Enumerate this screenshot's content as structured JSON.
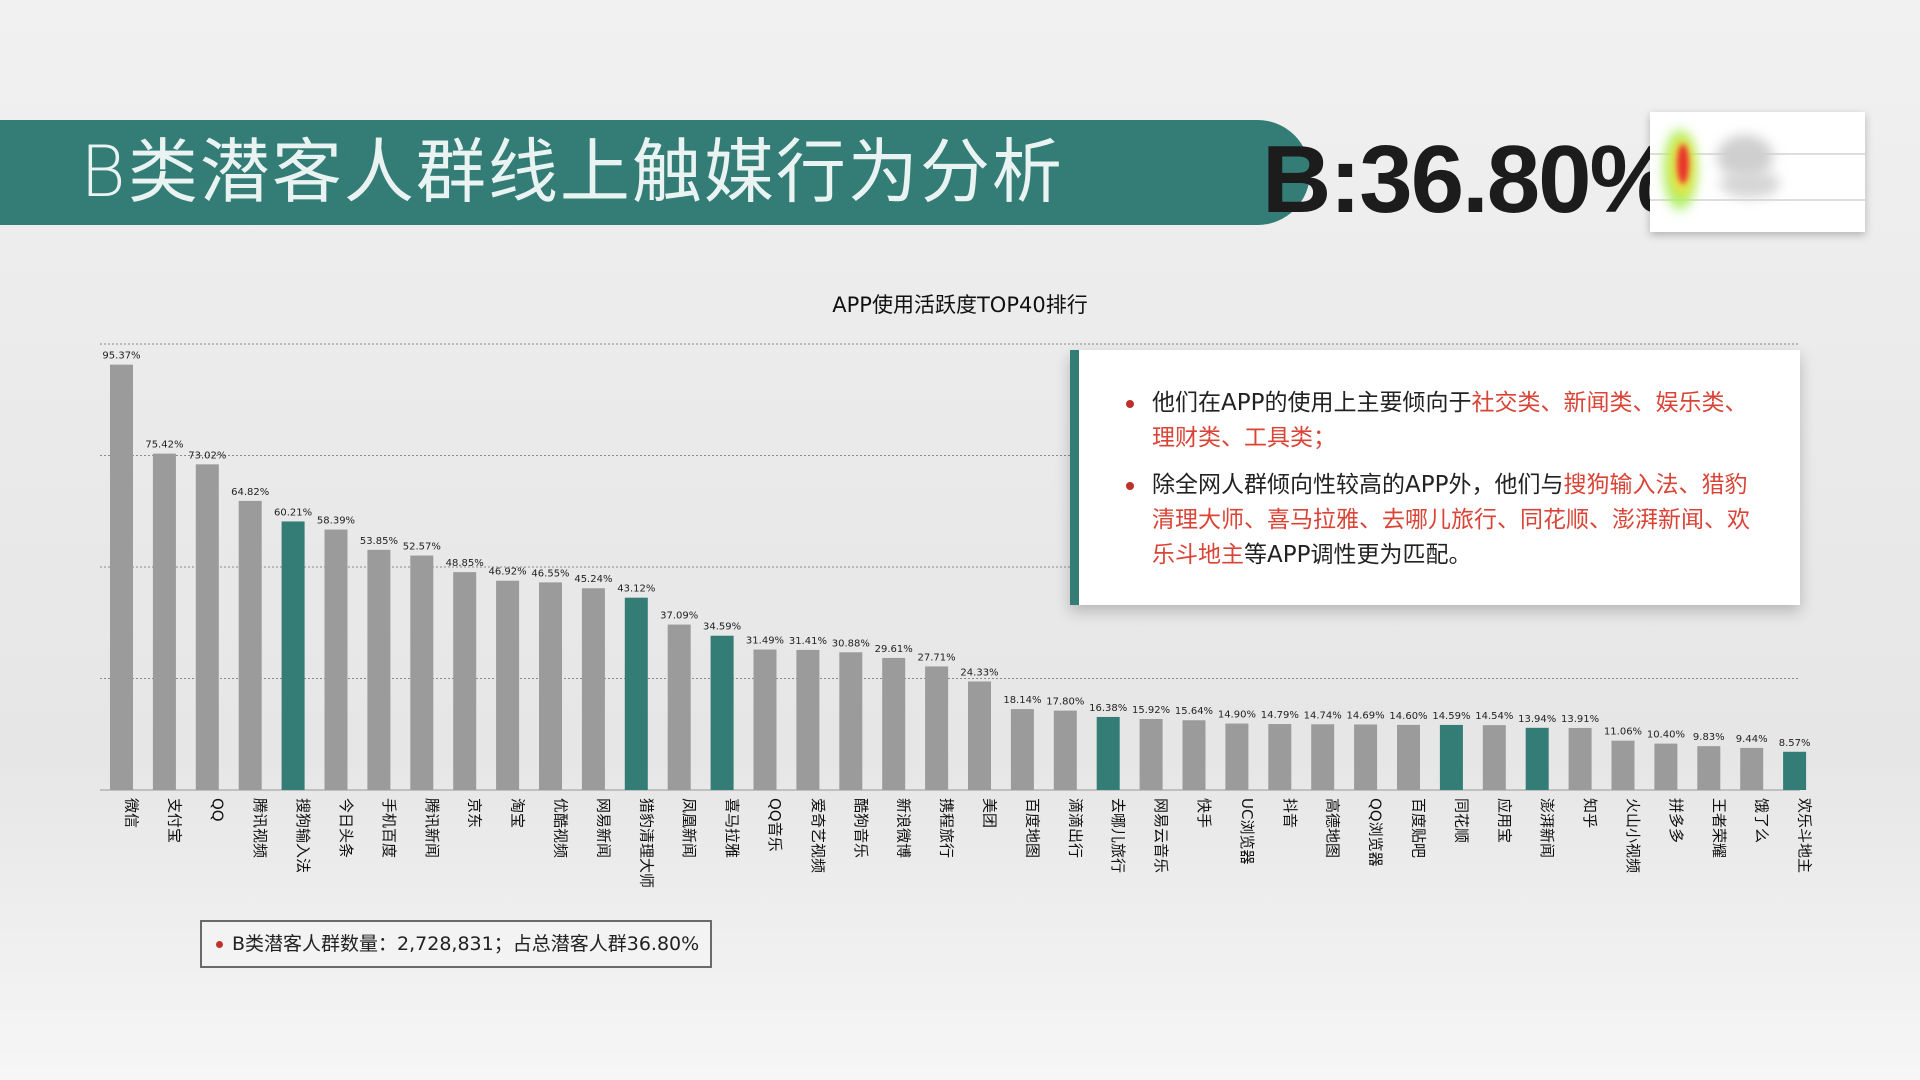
{
  "header": {
    "title": "B类潜客人群线上触媒行为分析",
    "big_percent": "B:36.80%"
  },
  "colors": {
    "accent": "#347c76",
    "bar_default": "#9b9b9b",
    "highlight_text": "#d94436"
  },
  "heatmap_icon": "heatmap-thumbnail",
  "info": {
    "bullet1_plain": "他们在APP的使用上主要倾向于",
    "bullet1_red": "社交类、新闻类、娱乐类、理财类、工具类；",
    "bullet2_plain1": "除全网人群倾向性较高的APP外，他们与",
    "bullet2_red": "搜狗输入法、猎豹清理大师、喜马拉雅、去哪儿旅行、同花顺、澎湃新闻、欢乐斗地主",
    "bullet2_plain2": "等APP调性更为匹配。"
  },
  "legend_note": "B类潜客人群数量：2,728,831；占总潜客人群36.80%",
  "chart_data": {
    "type": "bar",
    "title": "APP使用活跃度TOP40排行",
    "xlabel": "",
    "ylabel": "",
    "ylim": [
      0,
      100
    ],
    "grid": true,
    "categories": [
      "微信",
      "支付宝",
      "QQ",
      "腾讯视频",
      "搜狗输入法",
      "今日头条",
      "手机百度",
      "腾讯新闻",
      "京东",
      "淘宝",
      "优酷视频",
      "网易新闻",
      "猎豹清理大师",
      "凤凰新闻",
      "喜马拉雅",
      "QQ音乐",
      "爱奇艺视频",
      "酷狗音乐",
      "新浪微博",
      "携程旅行",
      "美团",
      "百度地图",
      "滴滴出行",
      "去哪儿旅行",
      "网易云音乐",
      "快手",
      "UC浏览器",
      "抖音",
      "高德地图",
      "QQ浏览器",
      "百度贴吧",
      "同花顺",
      "应用宝",
      "澎湃新闻",
      "知乎",
      "火山小视频",
      "拼多多",
      "王者荣耀",
      "饿了么",
      "欢乐斗地主"
    ],
    "values": [
      95.37,
      75.42,
      73.02,
      64.82,
      60.21,
      58.39,
      53.85,
      52.57,
      48.85,
      46.92,
      46.55,
      45.24,
      43.12,
      37.09,
      34.59,
      31.49,
      31.41,
      30.88,
      29.61,
      27.71,
      24.33,
      18.14,
      17.8,
      16.38,
      15.92,
      15.64,
      14.9,
      14.79,
      14.74,
      14.69,
      14.6,
      14.59,
      14.54,
      13.94,
      13.91,
      11.06,
      10.4,
      9.83,
      9.44,
      8.57
    ],
    "value_labels": [
      "95.37%",
      "75.42%",
      "73.02%",
      "64.82%",
      "60.21%",
      "58.39%",
      "53.85%",
      "52.57%",
      "48.85%",
      "46.92%",
      "46.55%",
      "45.24%",
      "43.12%",
      "37.09%",
      "34.59%",
      "31.49%",
      "31.41%",
      "30.88%",
      "29.61%",
      "27.71%",
      "24.33%",
      "18.14%",
      "17.80%",
      "16.38%",
      "15.92%",
      "15.64%",
      "14.90%",
      "14.79%",
      "14.74%",
      "14.69%",
      "14.60%",
      "14.59%",
      "14.54%",
      "13.94%",
      "13.91%",
      "11.06%",
      "10.40%",
      "9.83%",
      "9.44%",
      "8.57%"
    ],
    "highlighted": [
      "搜狗输入法",
      "猎豹清理大师",
      "喜马拉雅",
      "去哪儿旅行",
      "同花顺",
      "澎湃新闻",
      "欢乐斗地主"
    ]
  }
}
